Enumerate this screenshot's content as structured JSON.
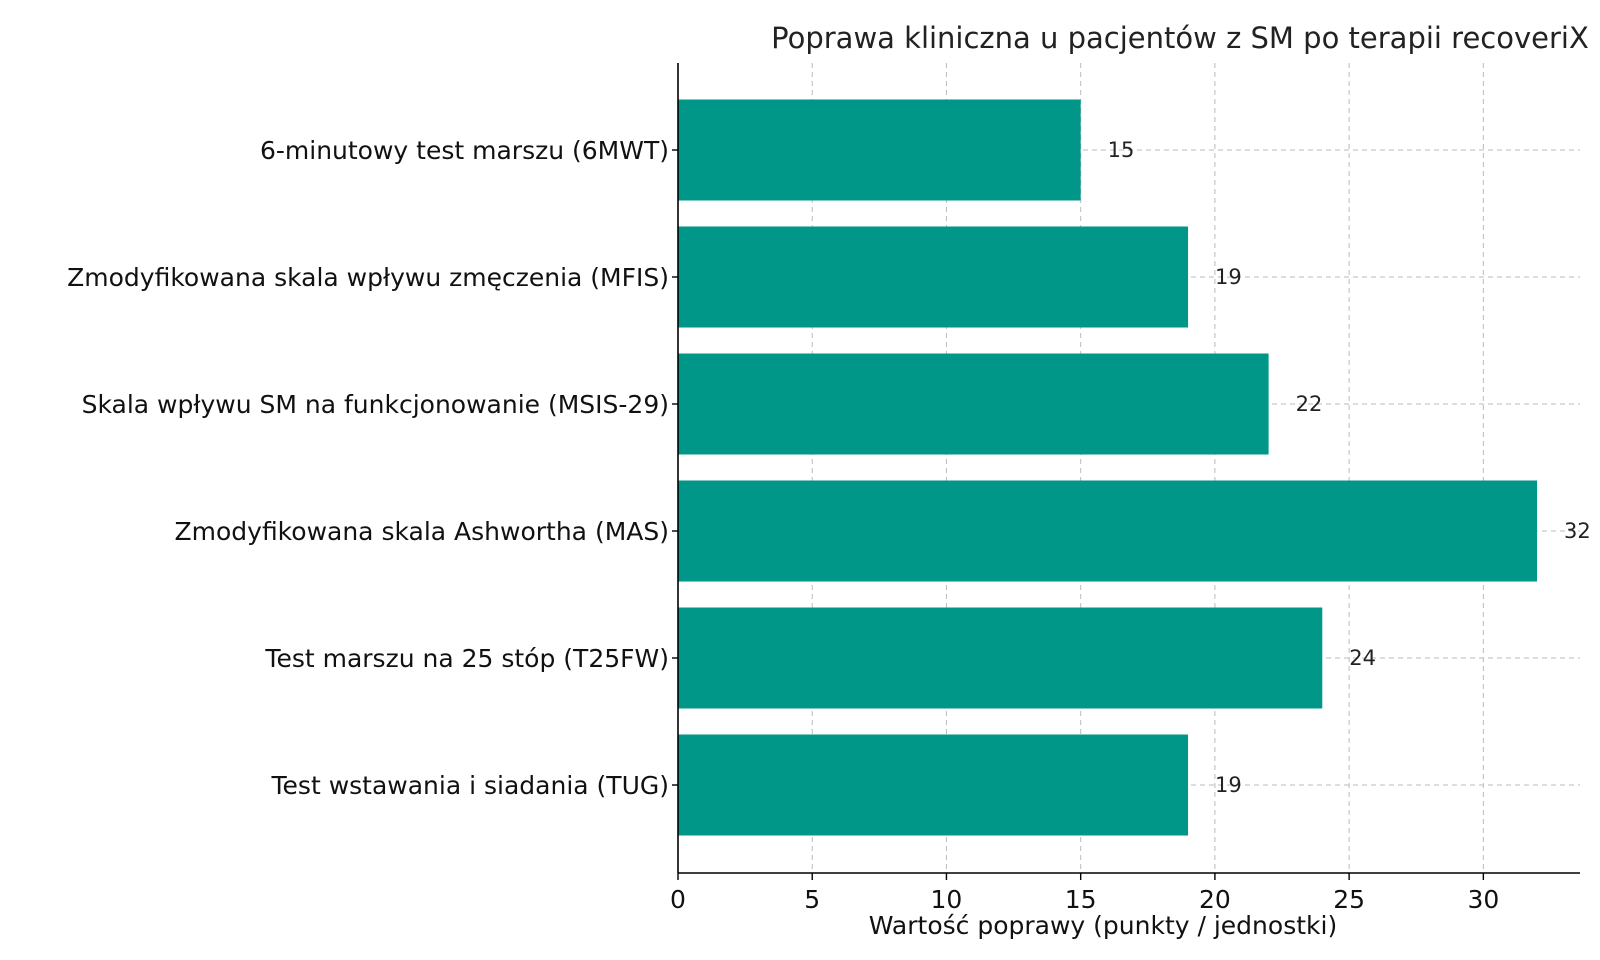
{
  "chart_data": {
    "type": "bar",
    "orientation": "horizontal",
    "title": "Poprawa kliniczna u pacjentów z SM po terapii recoveriX",
    "xlabel": "Wartość poprawy (punkty / jednostki)",
    "ylabel": "",
    "categories": [
      "6-minutowy test marszu (6MWT)",
      "Zmodyfikowana skala wpływu zmęczenia (MFIS)",
      "Skala wpływu SM na funkcjonowanie (MSIS-29)",
      "Zmodyfikowana skala Ashwortha (MAS)",
      "Test marszu na 25 stóp (T25FW)",
      "Test wstawania i siadania (TUG)"
    ],
    "values": [
      15,
      19,
      22,
      32,
      24,
      19
    ],
    "xlim": [
      0,
      33.6
    ],
    "xticks": [
      0,
      5,
      10,
      15,
      20,
      25,
      30
    ],
    "grid": true,
    "bar_color": "#009688",
    "data_labels": true
  }
}
